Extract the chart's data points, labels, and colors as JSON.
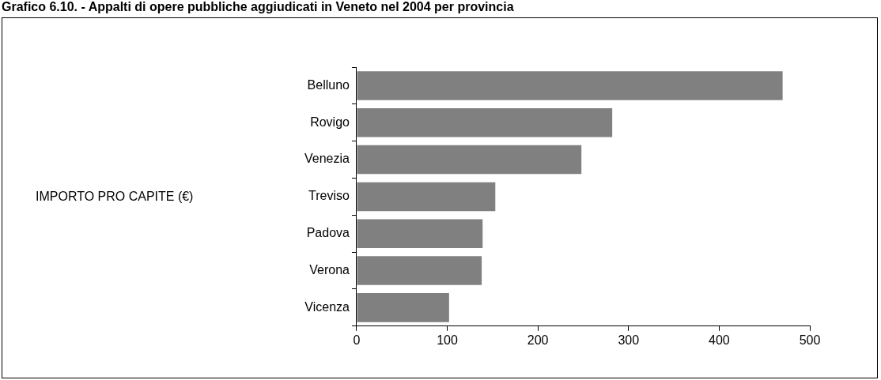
{
  "chart_data": {
    "type": "bar",
    "orientation": "horizontal",
    "title": "Grafico 6.10. - Appalti di opere pubbliche aggiudicati in Veneto nel 2004 per provincia",
    "annotations": [
      "IMPORTO PRO CAPITE (€)"
    ],
    "categories": [
      "Belluno",
      "Rovigo",
      "Venezia",
      "Treviso",
      "Padova",
      "Verona",
      "Vicenza"
    ],
    "values": [
      470,
      282,
      248,
      153,
      139,
      138,
      102
    ],
    "color": "#808080",
    "xlim": [
      0,
      500
    ],
    "xticks": [
      0,
      100,
      200,
      300,
      400,
      500
    ],
    "grid": false,
    "legend": false
  }
}
